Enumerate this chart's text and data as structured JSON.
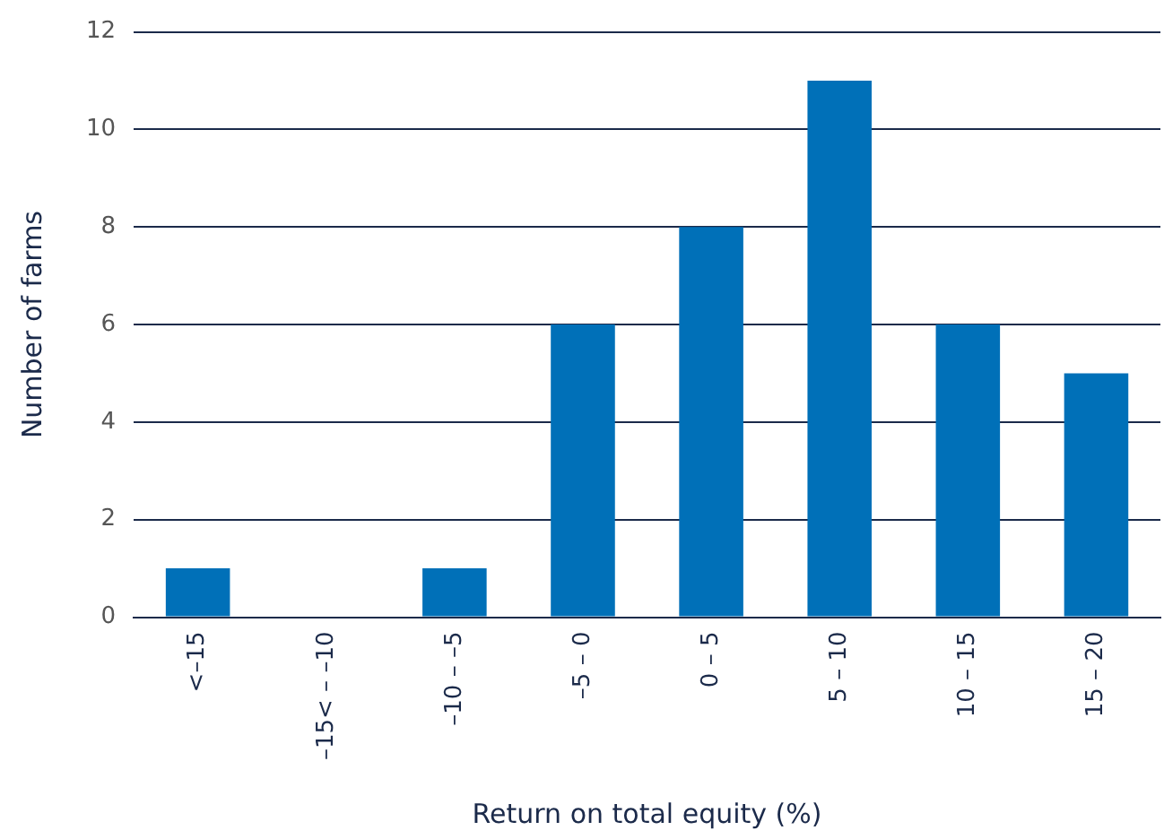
{
  "chart_data": {
    "type": "bar",
    "xlabel": "Return on total equity (%)",
    "ylabel": "Number of farms",
    "categories": [
      "<–15",
      "–15< – –10",
      "–10 – –5",
      "–5 – 0",
      "0 – 5",
      "5 – 10",
      "10 – 15",
      "15 – 20"
    ],
    "values": [
      1,
      0,
      1,
      6,
      8,
      11,
      6,
      5
    ],
    "color": "#0070b8",
    "ylim": [
      0,
      12
    ],
    "yticks": [
      0,
      2,
      4,
      6,
      8,
      10,
      12
    ],
    "grid": "y",
    "legend": false
  }
}
